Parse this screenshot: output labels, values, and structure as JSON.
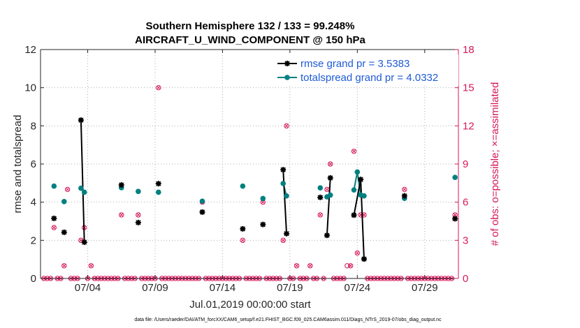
{
  "chart_data": {
    "type": "line",
    "title_line1": "Southern Hemisphere 132 / 133 = 99.248%",
    "title_line2": "AIRCRAFT_U_WIND_COMPONENT @ 150 hPa",
    "xlabel": "Jul.01,2019 00:00:00 start",
    "ylabel": "rmse and totalspread",
    "ylabel_right": "# of obs: o=possible; ×=assimilated",
    "footer": "data file: /Users/raeder/DAI/ATM_forcXX/CAM6_setup/f.e21.FHIST_BGC.f09_025.CAM6assim.011/Diags_NTrS_2019-07/obs_diag_output.nc",
    "xlim": [
      0,
      31
    ],
    "ylim": [
      0,
      12
    ],
    "ylim_right": [
      0,
      18
    ],
    "x_ticks": [
      {
        "value": 3.5,
        "label": "07/04"
      },
      {
        "value": 8.5,
        "label": "07/09"
      },
      {
        "value": 13.5,
        "label": "07/14"
      },
      {
        "value": 18.5,
        "label": "07/19"
      },
      {
        "value": 23.5,
        "label": "07/24"
      },
      {
        "value": 28.5,
        "label": "07/29"
      }
    ],
    "y_ticks": [
      0,
      2,
      4,
      6,
      8,
      10,
      12
    ],
    "y_ticks_right": [
      0,
      3,
      6,
      9,
      12,
      15,
      18
    ],
    "colors": {
      "rmse": "#000000",
      "spread": "#008080",
      "obs": "#d6175c",
      "legend_text": "#1f5bd6",
      "right_axis": "#d6175c"
    },
    "series": [
      {
        "name": "rmse grand pr = 3.5383",
        "points": [
          [
            1.0,
            3.15
          ],
          [
            1.75,
            2.42
          ],
          [
            3.0,
            8.3
          ],
          [
            3.25,
            1.9
          ],
          [
            6.0,
            4.9
          ],
          [
            7.25,
            2.93
          ],
          [
            8.75,
            4.97
          ],
          [
            12.0,
            3.48
          ],
          [
            15.0,
            2.6
          ],
          [
            16.5,
            2.83
          ],
          [
            18.0,
            5.7
          ],
          [
            18.25,
            2.35
          ],
          [
            20.75,
            4.25
          ],
          [
            21.25,
            2.26
          ],
          [
            21.5,
            5.27
          ],
          [
            23.25,
            3.32
          ],
          [
            23.75,
            5.19
          ],
          [
            24.0,
            1.02
          ],
          [
            27.0,
            4.33
          ],
          [
            30.75,
            3.13
          ]
        ],
        "segments": [
          [
            [
              3.0,
              8.3
            ],
            [
              3.25,
              1.9
            ]
          ],
          [
            [
              18.0,
              5.7
            ],
            [
              18.25,
              2.35
            ]
          ],
          [
            [
              21.25,
              2.26
            ],
            [
              21.5,
              5.27
            ]
          ],
          [
            [
              23.25,
              3.32
            ],
            [
              23.75,
              5.19
            ],
            [
              24.0,
              1.02
            ]
          ]
        ]
      },
      {
        "name": "totalspread grand pr = 4.0332",
        "points": [
          [
            1.0,
            4.84
          ],
          [
            1.75,
            4.03
          ],
          [
            3.0,
            4.73
          ],
          [
            3.25,
            4.52
          ],
          [
            6.0,
            4.76
          ],
          [
            7.25,
            4.56
          ],
          [
            8.75,
            4.52
          ],
          [
            12.0,
            4.05
          ],
          [
            15.0,
            4.84
          ],
          [
            16.5,
            4.19
          ],
          [
            18.0,
            4.98
          ],
          [
            18.25,
            4.33
          ],
          [
            20.75,
            4.75
          ],
          [
            21.25,
            4.28
          ],
          [
            21.5,
            4.37
          ],
          [
            23.25,
            4.64
          ],
          [
            23.5,
            5.58
          ],
          [
            23.75,
            4.38
          ],
          [
            24.0,
            4.33
          ],
          [
            27.0,
            4.2
          ],
          [
            30.75,
            5.3
          ]
        ],
        "segments": [
          [
            [
              3.0,
              4.73
            ],
            [
              3.25,
              4.52
            ]
          ],
          [
            [
              18.0,
              4.98
            ],
            [
              18.25,
              4.33
            ]
          ],
          [
            [
              21.25,
              4.28
            ],
            [
              21.5,
              4.37
            ]
          ],
          [
            [
              23.25,
              4.64
            ],
            [
              23.5,
              5.58
            ],
            [
              23.75,
              4.38
            ],
            [
              24.0,
              4.33
            ]
          ]
        ]
      }
    ],
    "obs_counts": {
      "points": [
        [
          1.0,
          4
        ],
        [
          1.75,
          1
        ],
        [
          2.0,
          7
        ],
        [
          3.0,
          3
        ],
        [
          3.25,
          4
        ],
        [
          3.75,
          1
        ],
        [
          6.0,
          5
        ],
        [
          7.25,
          5
        ],
        [
          8.75,
          15
        ],
        [
          12.0,
          6
        ],
        [
          15.0,
          3
        ],
        [
          16.5,
          6
        ],
        [
          18.0,
          3
        ],
        [
          18.25,
          12
        ],
        [
          19.0,
          1
        ],
        [
          20.0,
          1
        ],
        [
          20.75,
          5
        ],
        [
          21.25,
          7
        ],
        [
          21.5,
          9
        ],
        [
          23.0,
          1
        ],
        [
          23.25,
          10
        ],
        [
          23.5,
          2
        ],
        [
          23.75,
          5
        ],
        [
          24.0,
          5
        ],
        [
          27.0,
          7
        ],
        [
          30.75,
          5
        ]
      ],
      "possible_only": [
        [
          22.75,
          1
        ]
      ]
    }
  }
}
